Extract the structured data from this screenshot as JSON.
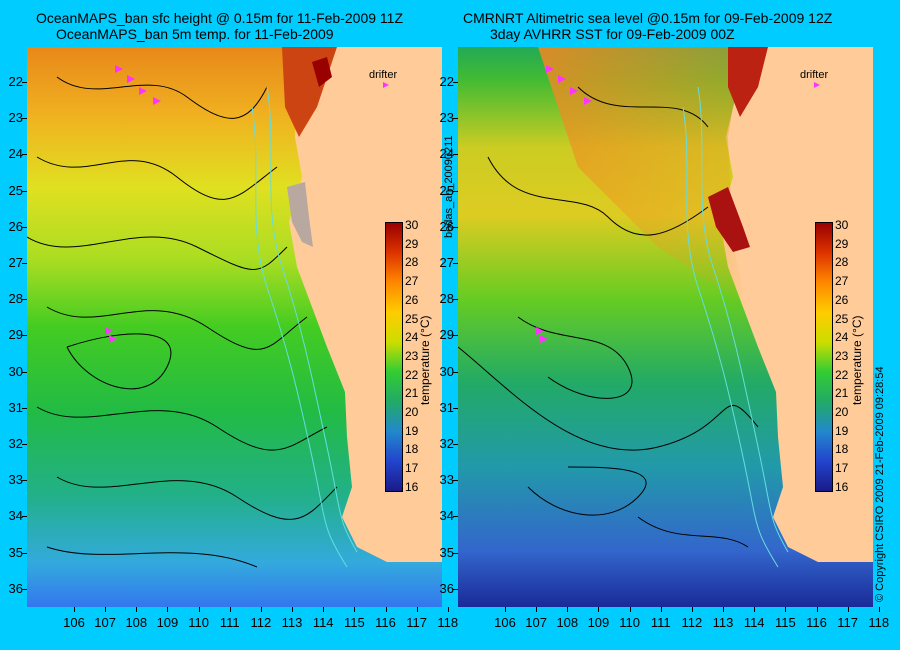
{
  "left_panel": {
    "title_line1": "OceanMAPS_ban sfc height @ 0.15m for 11-Feb-2009 11Z",
    "title_line2": "OceanMAPS_ban 5m temp. for 11-Feb-2009",
    "colorbar_title": "temperature (°C)",
    "legend_label": "drifter"
  },
  "right_panel": {
    "title_line1": "CMRNRT Altimetric sea level  @0.15m  for 09-Feb-2009 12Z",
    "title_line2": "3day AVHRR SST for 09-Feb-2009 00Z",
    "colorbar_title": "temperature (°C)",
    "legend_label": "drifter"
  },
  "side_label_middle": "bodas_an_20090211",
  "side_label_right": "© Copyright CSIRO 2009   21-Feb-2009 09:28:54",
  "axes": {
    "latitudes": [
      "22",
      "23",
      "24",
      "25",
      "26",
      "27",
      "28",
      "29",
      "30",
      "31",
      "32",
      "33",
      "34",
      "35",
      "36"
    ],
    "longitudes": [
      "106",
      "107",
      "108",
      "109",
      "110",
      "111",
      "112",
      "113",
      "114",
      "115",
      "116",
      "117",
      "118"
    ]
  },
  "colorbar_ticks": [
    "30",
    "29",
    "28",
    "27",
    "26",
    "25",
    "24",
    "23",
    "22",
    "21",
    "20",
    "19",
    "18",
    "17",
    "16"
  ],
  "colors": {
    "background": "#00ccff",
    "land": "#ffcc99",
    "drifter": "#ff33ff",
    "contour": "#000000",
    "isobath": "#66dddd"
  }
}
